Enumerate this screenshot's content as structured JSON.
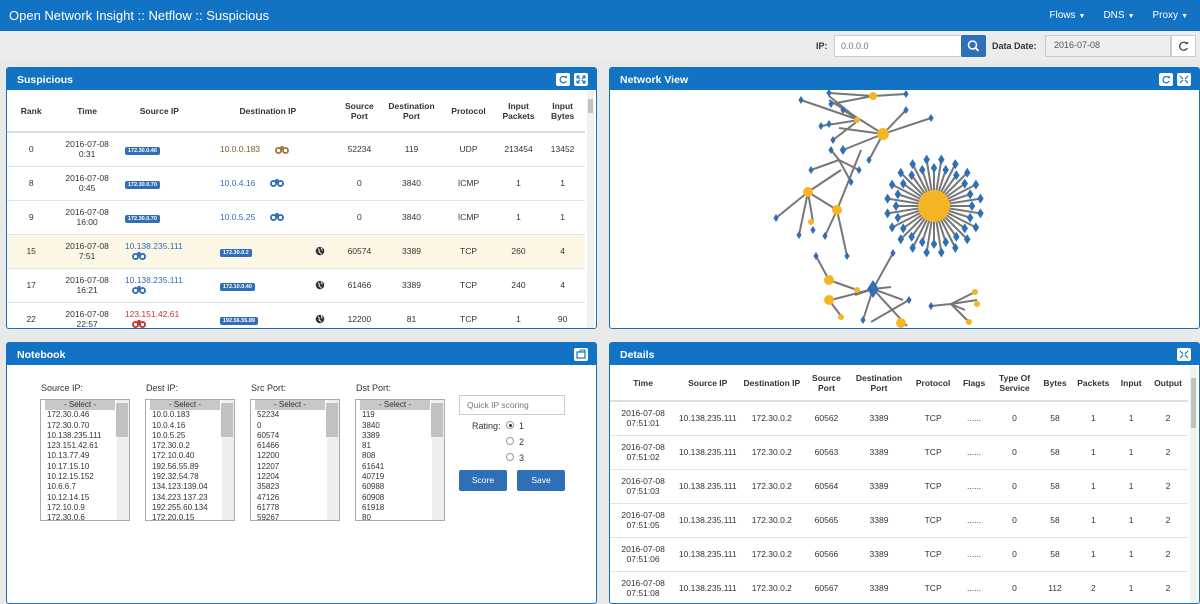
{
  "app": {
    "title": "Open Network Insight :: Netflow :: Suspicious",
    "menus": [
      "Flows",
      "DNS",
      "Proxy"
    ]
  },
  "toolbar": {
    "ip_label": "IP:",
    "ip_placeholder": "0.0.0.0",
    "date_label": "Data Date:",
    "date_value": "2016-07-08"
  },
  "suspicious": {
    "title": "Suspicious",
    "columns": [
      "Rank",
      "Time",
      "Source IP",
      "Destination IP",
      "Source Port",
      "Destination Port",
      "Protocol",
      "Input Packets",
      "Input Bytes"
    ],
    "rows": [
      {
        "rank": "0",
        "time": [
          "2016-07-08",
          "0:31"
        ],
        "src": "172.30.0.46",
        "src_style": "badge",
        "dst": "10.0.0.183",
        "dst_style": "text",
        "dst_color": "#8a5a2a",
        "icon_side": "dst",
        "icon": "binoculars-orange",
        "globe": false,
        "sport": "52234",
        "dport": "119",
        "proto": "UDP",
        "pkts": "213454",
        "bytes": "13452",
        "hl": false
      },
      {
        "rank": "8",
        "time": [
          "2016-07-08",
          "0:45"
        ],
        "src": "172.30.0.70",
        "src_style": "badge",
        "dst": "10.0.4.16",
        "dst_style": "text",
        "dst_color": "#2f6fb8",
        "icon_side": "dst",
        "icon": "binoculars-blue",
        "globe": false,
        "sport": "0",
        "dport": "3840",
        "proto": "ICMP",
        "pkts": "1",
        "bytes": "1",
        "hl": false
      },
      {
        "rank": "9",
        "time": [
          "2016-07-08",
          "16:00"
        ],
        "src": "172.30.0.70",
        "src_style": "badge",
        "dst": "10.0.5.25",
        "dst_style": "text",
        "dst_color": "#2f6fb8",
        "icon_side": "dst",
        "icon": "binoculars-blue",
        "globe": false,
        "sport": "0",
        "dport": "3840",
        "proto": "ICMP",
        "pkts": "1",
        "bytes": "1",
        "hl": false
      },
      {
        "rank": "15",
        "time": [
          "2016-07-08",
          "7:51"
        ],
        "src": "10.138.235.111",
        "src_style": "text",
        "src_color": "#2f6fb8",
        "dst": "172.30.0.2",
        "dst_style": "badge",
        "icon_side": "src",
        "icon": "binoculars-blue",
        "globe": true,
        "sport": "60574",
        "dport": "3389",
        "proto": "TCP",
        "pkts": "260",
        "bytes": "4",
        "hl": true
      },
      {
        "rank": "17",
        "time": [
          "2016-07-08",
          "16:21"
        ],
        "src": "10.138.235.111",
        "src_style": "text",
        "src_color": "#2f6fb8",
        "dst": "172.10.0.40",
        "dst_style": "badge",
        "icon_side": "src",
        "icon": "binoculars-blue",
        "globe": true,
        "sport": "61466",
        "dport": "3389",
        "proto": "TCP",
        "pkts": "240",
        "bytes": "4",
        "hl": false
      },
      {
        "rank": "22",
        "time": [
          "2016-07-08",
          "22:57"
        ],
        "src": "123.151.42.61",
        "src_style": "text",
        "src_color": "#c0392b",
        "dst": "192.56.55.89",
        "dst_style": "badge",
        "icon_side": "src",
        "icon": "binoculars-red",
        "globe": true,
        "sport": "12200",
        "dport": "81",
        "proto": "TCP",
        "pkts": "1",
        "bytes": "90",
        "hl": false
      }
    ]
  },
  "network": {
    "title": "Network View"
  },
  "notebook": {
    "title": "Notebook",
    "lists": [
      {
        "label": "Source IP:",
        "items": [
          "- Select -",
          "172.30.0.46",
          "172.30.0.70",
          "10.138.235.111",
          "123.151.42.61",
          "10.13.77.49",
          "10.17.15.10",
          "10.12.15.152",
          "10.6.6.7",
          "10.12.14.15",
          "172.10.0.9",
          "172.30.0.6"
        ]
      },
      {
        "label": "Dest IP:",
        "items": [
          "- Select -",
          "10.0.0.183",
          "10.0.4.16",
          "10.0.5.25",
          "172.30.0.2",
          "172.10.0.40",
          "192.56.55.89",
          "192.32.54.78",
          "134.123.139.04",
          "134.223.137.23",
          "192.255.60.134",
          "172.20.0.15"
        ]
      },
      {
        "label": "Src Port:",
        "items": [
          "- Select -",
          "52234",
          "0",
          "60574",
          "61466",
          "12200",
          "12207",
          "12204",
          "35823",
          "47126",
          "61778",
          "59267"
        ]
      },
      {
        "label": "Dst Port:",
        "items": [
          "- Select -",
          "119",
          "3840",
          "3389",
          "81",
          "808",
          "61641",
          "40719",
          "60988",
          "60908",
          "61918",
          "80"
        ]
      }
    ],
    "scoring_placeholder": "Quick IP scoring",
    "rating_label": "Rating:",
    "ratings": [
      "1",
      "2",
      "3"
    ],
    "score_label": "Score",
    "save_label": "Save"
  },
  "details": {
    "title": "Details",
    "columns": [
      "Time",
      "Source IP",
      "Destination IP",
      "Source Port",
      "Destination Port",
      "Protocol",
      "Flags",
      "Type Of Service",
      "Bytes",
      "Packets",
      "Input",
      "Output"
    ],
    "rows": [
      {
        "time": [
          "2016-07-08",
          "07:51:01"
        ],
        "src": "10.138.235.111",
        "dst": "172.30.0.2",
        "sport": "60562",
        "dport": "3389",
        "proto": "TCP",
        "flags": "......",
        "tos": "0",
        "bytes": "58",
        "packets": "1",
        "input": "1",
        "output": "2"
      },
      {
        "time": [
          "2016-07-08",
          "07:51:02"
        ],
        "src": "10.138.235.111",
        "dst": "172.30.0.2",
        "sport": "60563",
        "dport": "3389",
        "proto": "TCP",
        "flags": "......",
        "tos": "0",
        "bytes": "58",
        "packets": "1",
        "input": "1",
        "output": "2"
      },
      {
        "time": [
          "2016-07-08",
          "07:51:03"
        ],
        "src": "10.138.235.111",
        "dst": "172.30.0.2",
        "sport": "60564",
        "dport": "3389",
        "proto": "TCP",
        "flags": "......",
        "tos": "0",
        "bytes": "58",
        "packets": "1",
        "input": "1",
        "output": "2"
      },
      {
        "time": [
          "2016-07-08",
          "07:51:05"
        ],
        "src": "10.138.235.111",
        "dst": "172.30.0.2",
        "sport": "60565",
        "dport": "3389",
        "proto": "TCP",
        "flags": "......",
        "tos": "0",
        "bytes": "58",
        "packets": "1",
        "input": "1",
        "output": "2"
      },
      {
        "time": [
          "2016-07-08",
          "07:51:06"
        ],
        "src": "10.138.235.111",
        "dst": "172.30.0.2",
        "sport": "60566",
        "dport": "3389",
        "proto": "TCP",
        "flags": "......",
        "tos": "0",
        "bytes": "58",
        "packets": "1",
        "input": "1",
        "output": "2"
      },
      {
        "time": [
          "2016-07-08",
          "07:51:08"
        ],
        "src": "10.138.235.111",
        "dst": "172.30.0.2",
        "sport": "60567",
        "dport": "3389",
        "proto": "TCP",
        "flags": "......",
        "tos": "0",
        "bytes": "112",
        "packets": "2",
        "input": "1",
        "output": "2"
      }
    ]
  },
  "colors": {
    "primary": "#1273c4",
    "node_internal": "#f5b623",
    "node_external": "#2f6fb8",
    "highlight_row": "#fcf7e4"
  }
}
